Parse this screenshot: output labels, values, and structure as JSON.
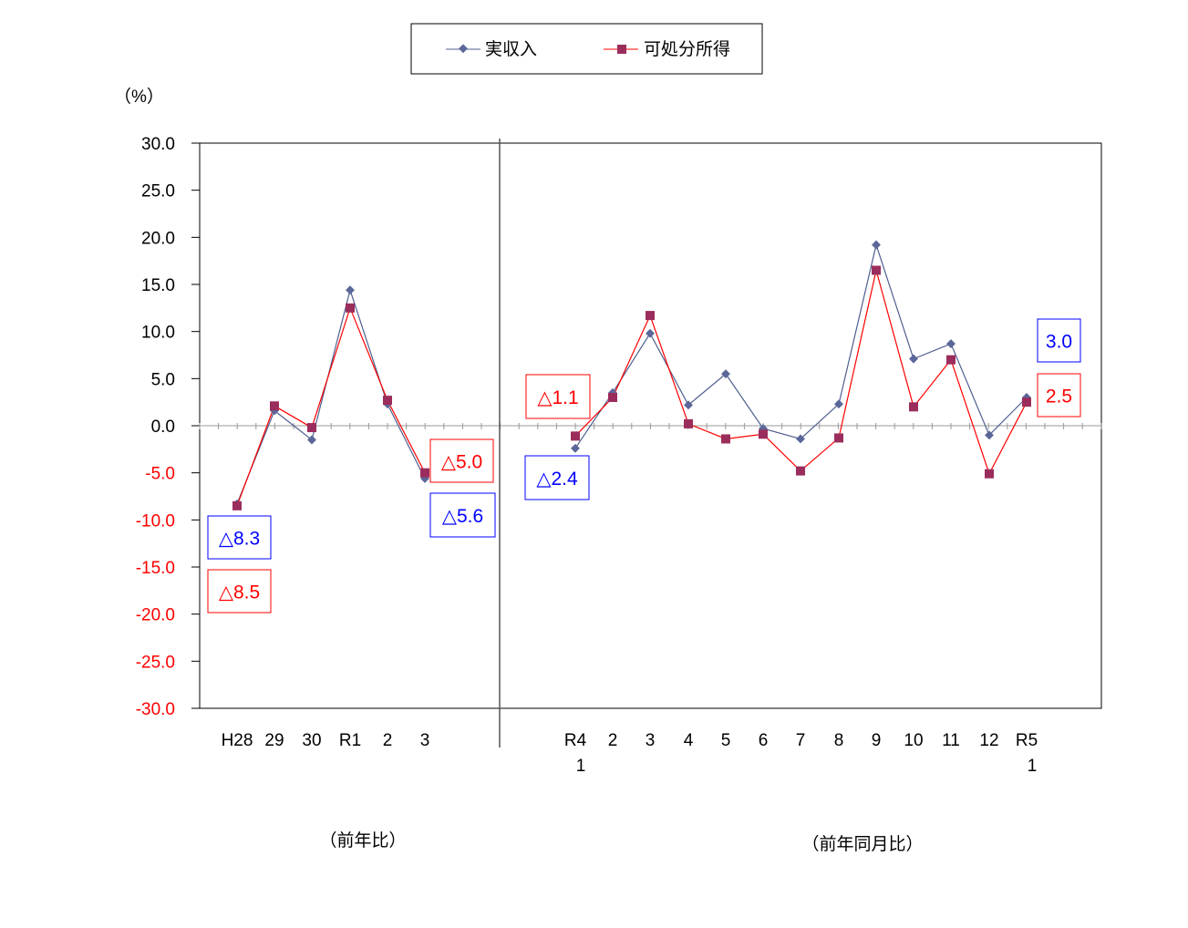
{
  "chart_data": {
    "type": "line",
    "yunit": "（%）",
    "ylim": [
      -30,
      30
    ],
    "yticks": [
      "30.0",
      "25.0",
      "20.0",
      "15.0",
      "10.0",
      "5.0",
      "0.0",
      "-5.0",
      "-10.0",
      "-15.0",
      "-20.0",
      "-25.0",
      "-30.0"
    ],
    "colors": {
      "income": "#4f5f8f",
      "income_marker": "#5b6798",
      "disposable": "#ff0000",
      "disposable_marker": "#9b2d5c",
      "neg_tick": "#ff0000"
    },
    "legend": [
      "実収入",
      "可処分所得"
    ],
    "panels": [
      {
        "caption": "（前年比）",
        "categories": [
          [
            "H28"
          ],
          [
            "29"
          ],
          [
            "30"
          ],
          [
            "R1"
          ],
          [
            "2"
          ],
          [
            "3"
          ]
        ],
        "series": [
          {
            "name": "実収入",
            "values": [
              -8.3,
              1.6,
              -1.5,
              14.4,
              2.3,
              -5.6
            ]
          },
          {
            "name": "可処分所得",
            "values": [
              -8.5,
              2.1,
              -0.2,
              12.5,
              2.7,
              -5.0
            ]
          }
        ]
      },
      {
        "caption": "（前年同月比）",
        "categories": [
          [
            "R4",
            "1"
          ],
          [
            "2"
          ],
          [
            "3"
          ],
          [
            "4"
          ],
          [
            "5"
          ],
          [
            "6"
          ],
          [
            "7"
          ],
          [
            "8"
          ],
          [
            "9"
          ],
          [
            "10"
          ],
          [
            "11"
          ],
          [
            "12"
          ],
          [
            "R5",
            "1"
          ]
        ],
        "series": [
          {
            "name": "実収入",
            "values": [
              -2.4,
              3.5,
              9.8,
              2.2,
              5.5,
              -0.3,
              -1.4,
              2.3,
              19.2,
              7.1,
              8.7,
              -1.0,
              3.0
            ]
          },
          {
            "name": "可処分所得",
            "values": [
              -1.1,
              3.0,
              11.7,
              0.2,
              -1.4,
              -0.9,
              -4.8,
              -1.3,
              16.5,
              2.0,
              7.0,
              -5.1,
              2.5
            ]
          }
        ]
      }
    ],
    "annotations": [
      {
        "text": "△8.3",
        "series": "実収入"
      },
      {
        "text": "△8.5",
        "series": "可処分所得"
      },
      {
        "text": "△5.0",
        "series": "可処分所得"
      },
      {
        "text": "△5.6",
        "series": "実収入"
      },
      {
        "text": "△1.1",
        "series": "可処分所得"
      },
      {
        "text": "△2.4",
        "series": "実収入"
      },
      {
        "text": "3.0",
        "series": "実収入"
      },
      {
        "text": "2.5",
        "series": "可処分所得"
      }
    ]
  }
}
